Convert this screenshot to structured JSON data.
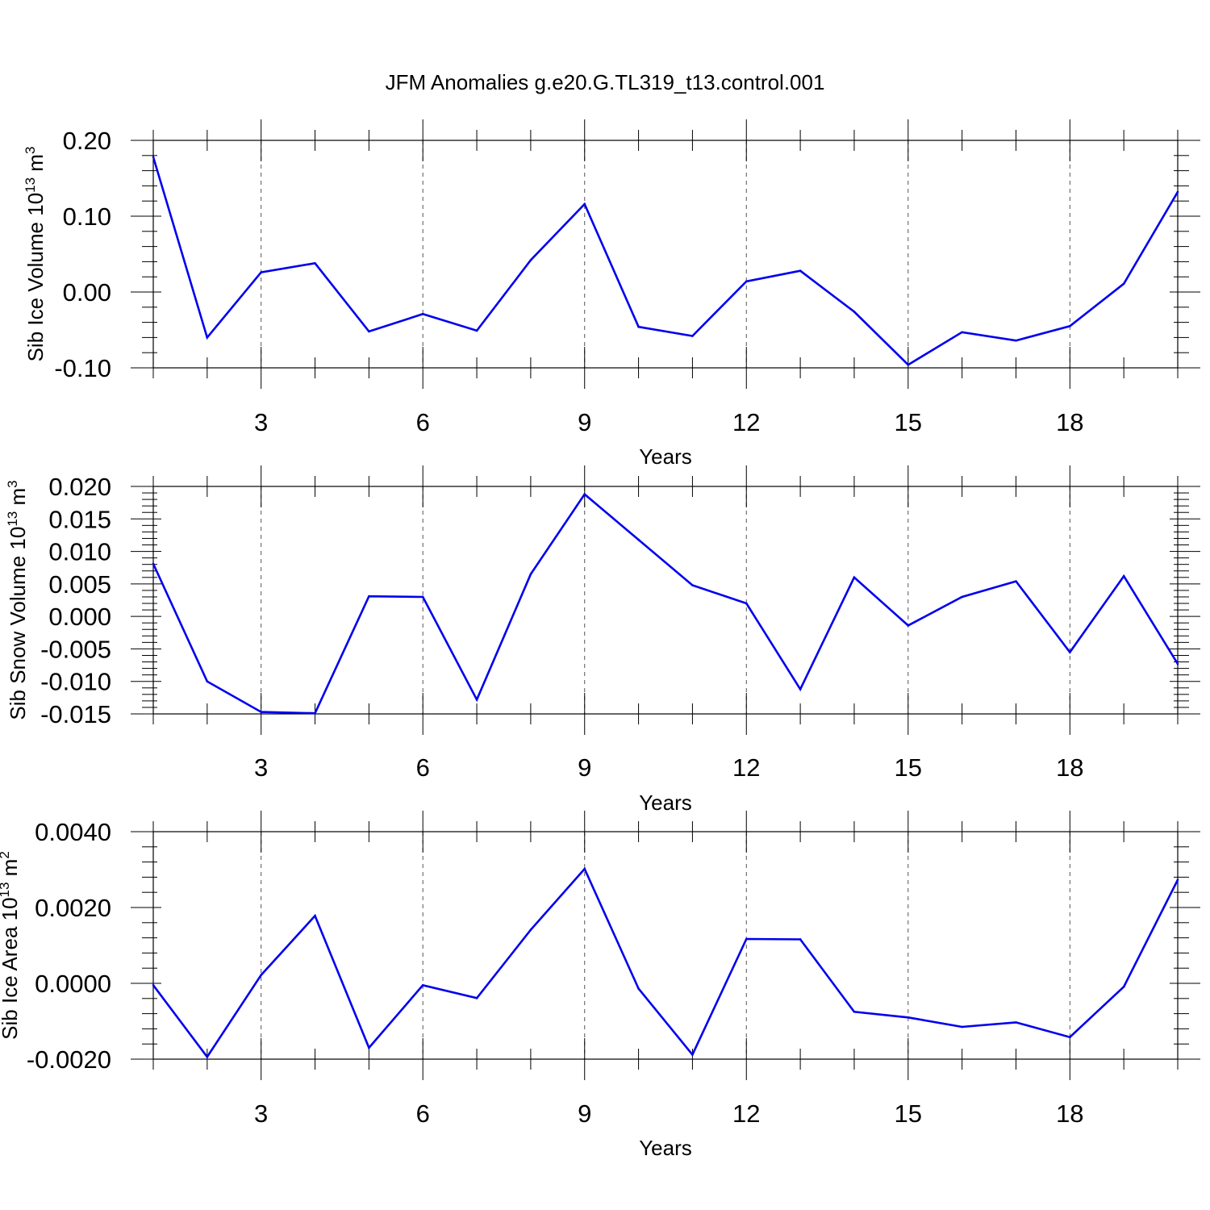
{
  "chart_data": {
    "title": "JFM Anomalies g.e20.G.TL319_t13.control.001",
    "line_color": "#0000ee",
    "panels": [
      {
        "type": "line",
        "ylabel": {
          "text": "Sib Ice Volume 10",
          "sup1": "13",
          "mid": " m",
          "sup2": "3"
        },
        "xlabel": "Years",
        "xlim": [
          1,
          20
        ],
        "ylim": [
          -0.1,
          0.2
        ],
        "xticks": [
          3,
          6,
          9,
          12,
          15,
          18
        ],
        "yticks": [
          -0.1,
          0.0,
          0.1,
          0.2
        ],
        "ytick_labels": [
          "-0.10",
          "0.00",
          "0.10",
          "0.20"
        ],
        "x": [
          1,
          2,
          3,
          4,
          5,
          6,
          7,
          8,
          9,
          10,
          11,
          12,
          13,
          14,
          15,
          16,
          17,
          18,
          19,
          20
        ],
        "values": [
          0.178,
          -0.06,
          0.026,
          0.038,
          -0.052,
          -0.029,
          -0.051,
          0.042,
          0.116,
          -0.046,
          -0.058,
          0.014,
          0.028,
          -0.026,
          -0.096,
          -0.053,
          -0.064,
          -0.045,
          0.011,
          0.132
        ]
      },
      {
        "type": "line",
        "ylabel": {
          "text": "Sib Snow Volume 10",
          "sup1": "13",
          "mid": " m",
          "sup2": "3"
        },
        "xlabel": "Years",
        "xlim": [
          1,
          20
        ],
        "ylim": [
          -0.015,
          0.02
        ],
        "xticks": [
          3,
          6,
          9,
          12,
          15,
          18
        ],
        "yticks": [
          -0.015,
          -0.01,
          -0.005,
          0.0,
          0.005,
          0.01,
          0.015,
          0.02
        ],
        "ytick_labels": [
          "-0.015",
          "-0.010",
          "-0.005",
          "0.000",
          "0.005",
          "0.010",
          "0.015",
          "0.020"
        ],
        "x": [
          1,
          2,
          3,
          4,
          5,
          6,
          7,
          8,
          9,
          10,
          11,
          12,
          13,
          14,
          15,
          16,
          17,
          18,
          19,
          20
        ],
        "values": [
          0.0081,
          -0.01,
          -0.0147,
          -0.0149,
          0.0031,
          0.003,
          -0.0128,
          0.0065,
          0.0188,
          0.0118,
          0.0048,
          0.002,
          -0.0112,
          0.006,
          -0.0014,
          0.003,
          0.0054,
          -0.0055,
          0.0062,
          -0.0073
        ]
      },
      {
        "type": "line",
        "ylabel": {
          "text": "Sib Ice Area 10",
          "sup1": "13",
          "mid": " m",
          "sup2": "2"
        },
        "xlabel": "Years",
        "xlim": [
          1,
          20
        ],
        "ylim": [
          -0.002,
          0.004
        ],
        "xticks": [
          3,
          6,
          9,
          12,
          15,
          18
        ],
        "yticks": [
          -0.002,
          0.0,
          0.002,
          0.004
        ],
        "ytick_labels": [
          "-0.0020",
          "0.0000",
          "0.0020",
          "0.0040"
        ],
        "x": [
          1,
          2,
          3,
          4,
          5,
          6,
          7,
          8,
          9,
          10,
          11,
          12,
          13,
          14,
          15,
          16,
          17,
          18,
          19,
          20
        ],
        "values": [
          -5e-05,
          -0.00194,
          0.00022,
          0.00178,
          -0.0017,
          -5e-05,
          -0.00039,
          0.00141,
          0.00302,
          -0.00014,
          -0.00188,
          0.00117,
          0.00116,
          -0.00075,
          -0.0009,
          -0.00115,
          -0.00103,
          -0.00142,
          -9e-05,
          0.00273
        ]
      }
    ]
  }
}
